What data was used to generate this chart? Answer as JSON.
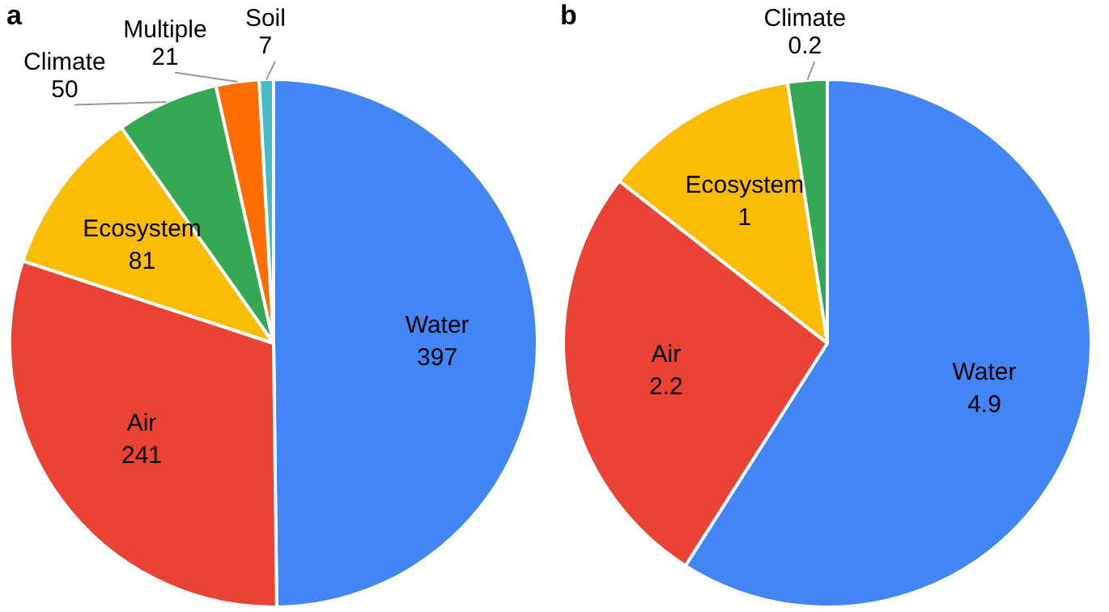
{
  "chart_data": [
    {
      "type": "pie",
      "title": "a",
      "categories": [
        "Water",
        "Air",
        "Ecosystem",
        "Climate",
        "Multiple",
        "Soil"
      ],
      "values": [
        397,
        241,
        81,
        50,
        21,
        7
      ],
      "colors": [
        "#4285f4",
        "#ea4335",
        "#fbbc04",
        "#34a853",
        "#ff6d01",
        "#46bdc6"
      ],
      "data_labels": true,
      "legend": false
    },
    {
      "type": "pie",
      "title": "b",
      "categories": [
        "Water",
        "Air",
        "Ecosystem",
        "Climate"
      ],
      "values": [
        4.9,
        2.2,
        1,
        0.2
      ],
      "colors": [
        "#4285f4",
        "#ea4335",
        "#fbbc04",
        "#34a853"
      ],
      "data_labels": true,
      "legend": false
    }
  ]
}
